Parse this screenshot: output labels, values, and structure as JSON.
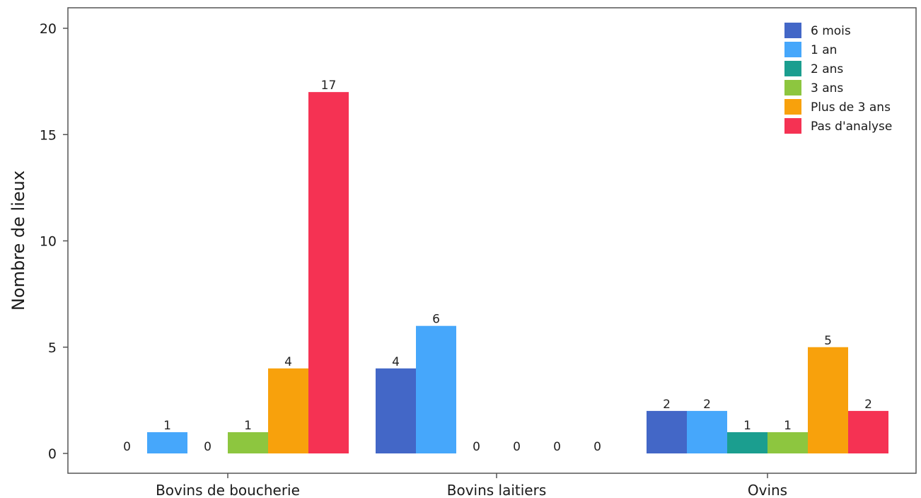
{
  "chart_data": {
    "type": "bar",
    "title": "",
    "xlabel": "",
    "ylabel": "Nombre de lieux",
    "categories": [
      "Bovins de boucherie",
      "Bovins laitiers",
      "Ovins"
    ],
    "series": [
      {
        "name": "6 mois",
        "color": "#4367c7",
        "values": [
          0,
          4,
          2
        ]
      },
      {
        "name": "1 an",
        "color": "#46a7fb",
        "values": [
          1,
          6,
          2
        ]
      },
      {
        "name": "2 ans",
        "color": "#1b9e8f",
        "values": [
          0,
          0,
          1
        ]
      },
      {
        "name": "3 ans",
        "color": "#8dc63f",
        "values": [
          1,
          0,
          1
        ]
      },
      {
        "name": "Plus de 3 ans",
        "color": "#f8a10c",
        "values": [
          4,
          0,
          5
        ]
      },
      {
        "name": "Pas d'analyse",
        "color": "#f53253",
        "values": [
          17,
          0,
          2
        ]
      }
    ],
    "ylim": [
      0,
      20
    ],
    "yticks": [
      0,
      5,
      10,
      15,
      20
    ],
    "grid": false,
    "legend_position": "top-right",
    "data_labels": true
  }
}
